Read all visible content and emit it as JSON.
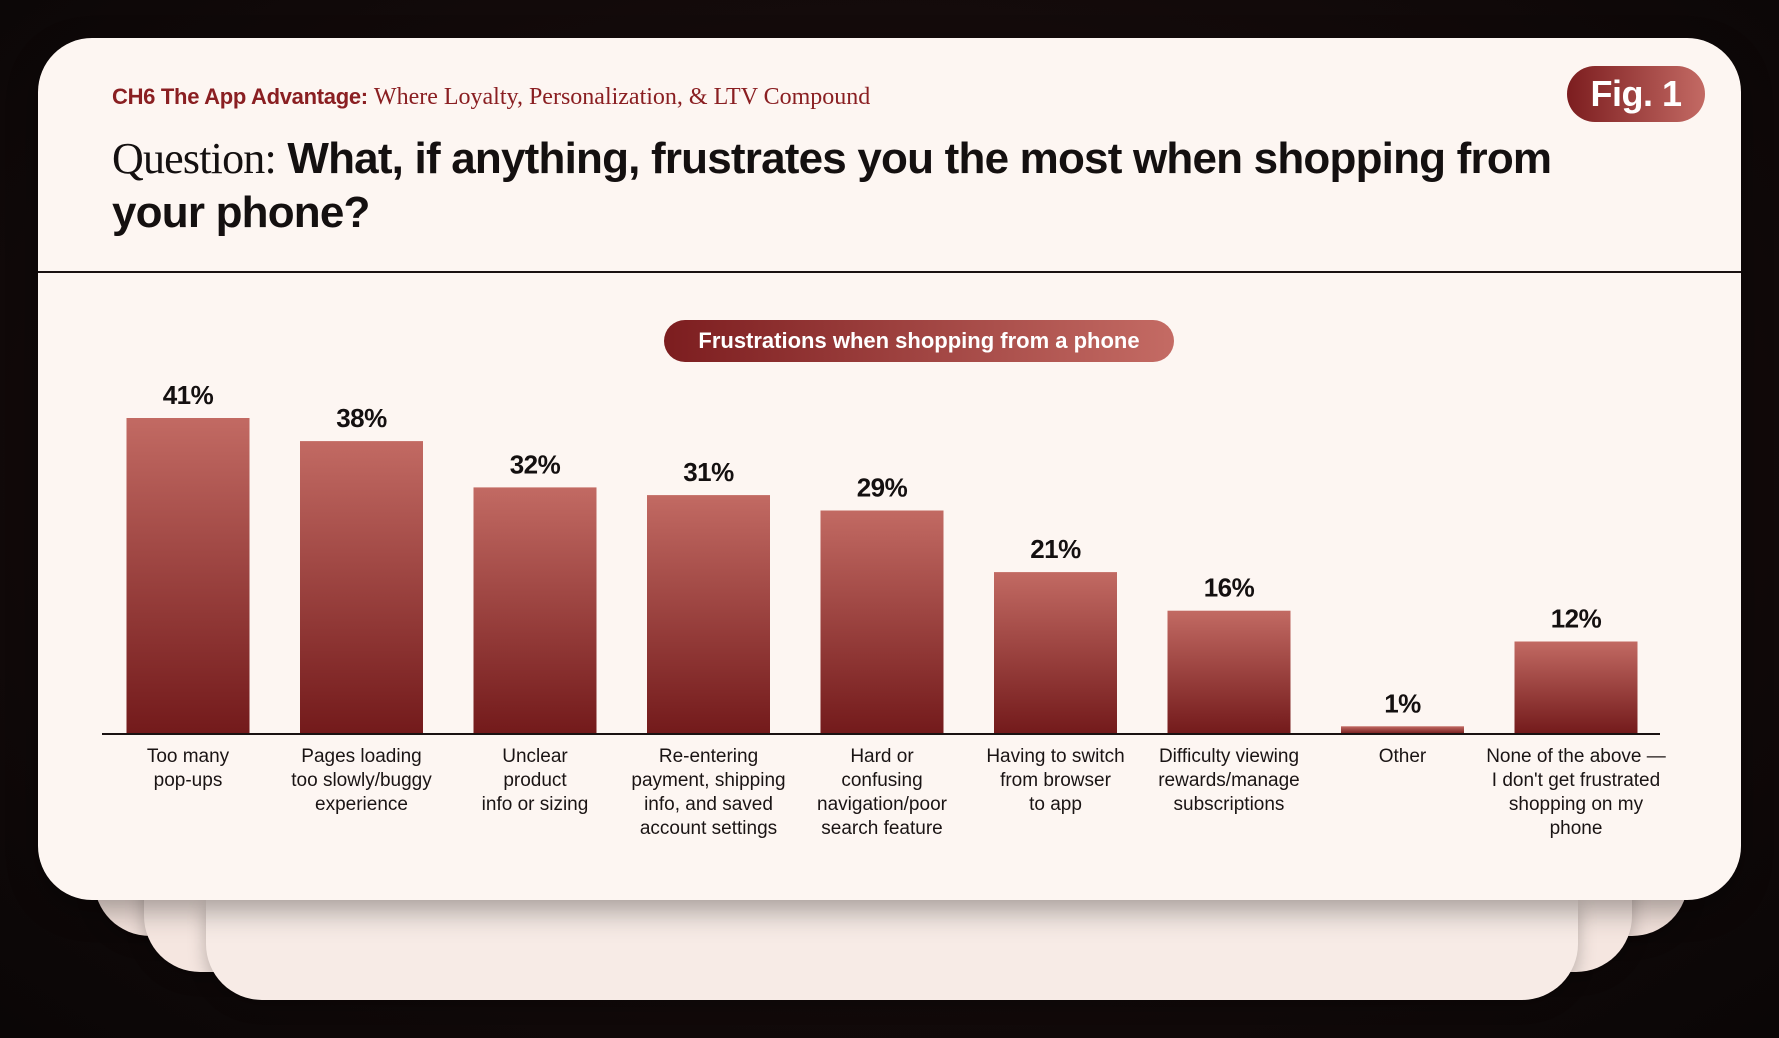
{
  "header": {
    "chapter_label": "CH6 The App Advantage:",
    "chapter_subtitle": "Where Loyalty, Personalization, & LTV Compound",
    "fig_label": "Fig. 1",
    "question_prefix": "Question:",
    "question_text": "What, if anything, frustrates you the most when shopping from your phone?"
  },
  "colors": {
    "bar_top": "#c26a63",
    "bar_bottom": "#731a1b",
    "accent": "#8a1f22"
  },
  "chart_data": {
    "type": "bar",
    "title": "Frustrations when shopping from a phone",
    "categories": [
      [
        "Too many",
        "pop-ups"
      ],
      [
        "Pages loading",
        "too slowly/buggy",
        "experience"
      ],
      [
        "Unclear",
        "product",
        "info or sizing"
      ],
      [
        "Re-entering",
        "payment, shipping",
        "info, and saved",
        "account settings"
      ],
      [
        "Hard or",
        "confusing",
        "navigation/poor",
        "search feature"
      ],
      [
        "Having to switch",
        "from browser",
        "to app"
      ],
      [
        "Difficulty viewing",
        "rewards/manage",
        "subscriptions"
      ],
      [
        "Other"
      ],
      [
        "None of the above —",
        "I don't get frustrated",
        "shopping on my",
        "phone"
      ]
    ],
    "values": [
      41,
      38,
      32,
      31,
      29,
      21,
      16,
      1,
      12
    ],
    "value_labels": [
      "41%",
      "38%",
      "32%",
      "31%",
      "29%",
      "21%",
      "16%",
      "1%",
      "12%"
    ],
    "unit": "%",
    "ylim": [
      0,
      41
    ],
    "grid": false,
    "legend": "none"
  }
}
